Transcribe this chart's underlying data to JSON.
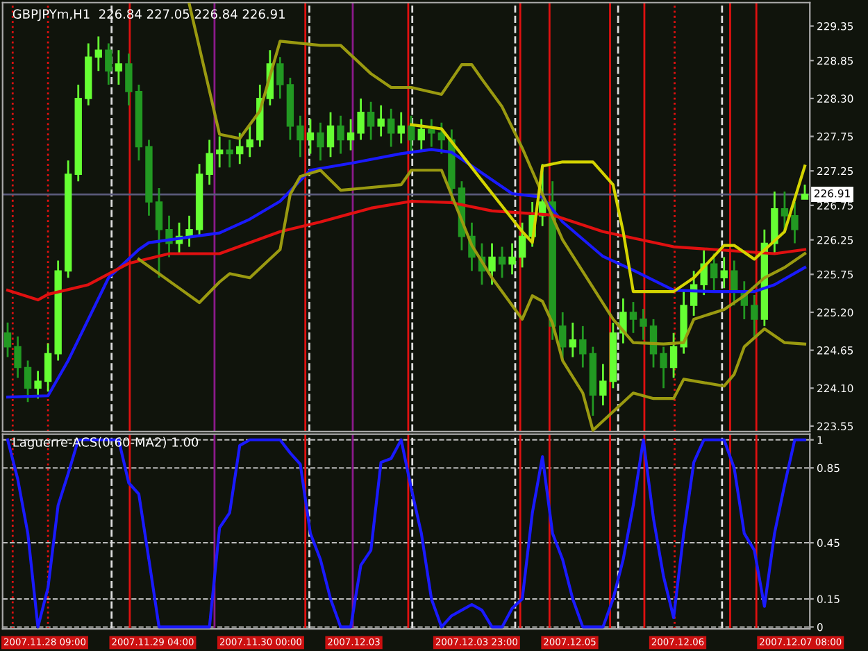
{
  "chart_data": [
    {
      "type": "candlestick",
      "title": "GBPJPYm,H1  226.84 227.05 226.84 226.91",
      "categories": [
        null,
        null,
        null,
        null,
        null,
        null,
        null,
        null,
        null,
        null,
        null,
        null,
        null,
        null,
        null,
        null,
        null,
        null,
        null,
        null,
        null,
        null,
        null,
        null,
        null,
        null,
        null,
        null,
        null,
        null,
        null,
        null,
        null,
        null,
        null,
        null,
        null,
        null,
        null,
        null,
        null,
        null,
        null,
        null,
        null,
        null,
        null,
        null,
        null,
        null,
        null,
        null,
        null,
        null,
        null,
        null,
        null,
        null,
        null,
        null,
        null,
        null,
        null,
        null,
        null,
        null,
        null,
        null,
        null,
        null,
        null,
        null,
        null,
        null,
        null,
        null,
        null,
        null,
        null,
        null
      ],
      "ohlc": [
        [
          224.9,
          225.05,
          224.55,
          224.7
        ],
        [
          224.7,
          224.85,
          224.25,
          224.4
        ],
        [
          224.4,
          224.5,
          223.9,
          224.1
        ],
        [
          224.1,
          224.35,
          223.95,
          224.2
        ],
        [
          224.2,
          224.75,
          224.05,
          224.6
        ],
        [
          224.6,
          225.95,
          224.5,
          225.8
        ],
        [
          225.8,
          227.4,
          225.7,
          227.2
        ],
        [
          227.2,
          228.5,
          227.1,
          228.3
        ],
        [
          228.3,
          229.1,
          228.2,
          228.9
        ],
        [
          228.9,
          229.2,
          228.7,
          229.0
        ],
        [
          229.0,
          229.1,
          228.5,
          228.7
        ],
        [
          228.7,
          229.0,
          228.5,
          228.8
        ],
        [
          228.8,
          228.95,
          228.2,
          228.4
        ],
        [
          228.4,
          228.5,
          227.4,
          227.6
        ],
        [
          227.6,
          227.7,
          226.6,
          226.8
        ],
        [
          226.8,
          227.0,
          225.7,
          226.4
        ],
        [
          226.4,
          226.6,
          226.0,
          226.2
        ],
        [
          226.2,
          226.5,
          226.05,
          226.3
        ],
        [
          226.3,
          226.6,
          226.15,
          226.4
        ],
        [
          226.4,
          227.35,
          226.3,
          227.2
        ],
        [
          227.2,
          227.7,
          227.05,
          227.5
        ],
        [
          227.5,
          227.75,
          227.3,
          227.55
        ],
        [
          227.55,
          227.7,
          227.3,
          227.5
        ],
        [
          227.5,
          227.8,
          227.35,
          227.6
        ],
        [
          227.6,
          227.9,
          227.45,
          227.7
        ],
        [
          227.7,
          228.5,
          227.6,
          228.3
        ],
        [
          228.3,
          229.0,
          228.2,
          228.8
        ],
        [
          228.8,
          228.9,
          228.3,
          228.5
        ],
        [
          228.5,
          228.6,
          227.7,
          227.9
        ],
        [
          227.9,
          228.05,
          227.45,
          227.7
        ],
        [
          227.7,
          228.0,
          227.5,
          227.8
        ],
        [
          227.8,
          227.95,
          227.4,
          227.6
        ],
        [
          227.6,
          228.1,
          227.45,
          227.9
        ],
        [
          227.9,
          228.05,
          227.5,
          227.7
        ],
        [
          227.7,
          228.0,
          227.55,
          227.8
        ],
        [
          227.8,
          228.3,
          227.7,
          228.1
        ],
        [
          228.1,
          228.25,
          227.7,
          227.9
        ],
        [
          227.9,
          228.2,
          227.75,
          228.0
        ],
        [
          228.0,
          228.15,
          227.6,
          227.8
        ],
        [
          227.8,
          228.1,
          227.65,
          227.9
        ],
        [
          227.9,
          228.05,
          227.5,
          227.7
        ],
        [
          227.7,
          228.0,
          227.55,
          227.85
        ],
        [
          227.85,
          228.0,
          227.6,
          227.8
        ],
        [
          227.8,
          227.95,
          227.5,
          227.7
        ],
        [
          227.7,
          227.85,
          226.8,
          227.0
        ],
        [
          227.0,
          227.1,
          226.1,
          226.3
        ],
        [
          226.3,
          226.5,
          225.8,
          226.0
        ],
        [
          226.0,
          226.2,
          225.6,
          225.8
        ],
        [
          225.8,
          226.2,
          225.6,
          226.0
        ],
        [
          226.0,
          226.15,
          225.7,
          225.9
        ],
        [
          225.9,
          226.2,
          225.75,
          226.0
        ],
        [
          226.0,
          226.5,
          225.85,
          226.3
        ],
        [
          226.3,
          226.8,
          226.15,
          226.6
        ],
        [
          226.6,
          227.35,
          226.45,
          226.8
        ],
        [
          226.8,
          227.1,
          224.8,
          225.0
        ],
        [
          225.0,
          225.2,
          224.5,
          224.7
        ],
        [
          224.7,
          225.05,
          224.55,
          224.8
        ],
        [
          224.8,
          225.0,
          224.4,
          224.6
        ],
        [
          224.6,
          224.7,
          223.7,
          224.0
        ],
        [
          224.0,
          224.45,
          223.85,
          224.2
        ],
        [
          224.2,
          225.05,
          224.1,
          224.9
        ],
        [
          224.9,
          225.4,
          224.75,
          225.2
        ],
        [
          225.2,
          225.35,
          224.9,
          225.1
        ],
        [
          225.1,
          225.25,
          224.8,
          225.0
        ],
        [
          225.0,
          225.1,
          224.4,
          224.6
        ],
        [
          224.6,
          224.7,
          224.1,
          224.4
        ],
        [
          224.4,
          224.9,
          224.25,
          224.7
        ],
        [
          224.7,
          225.5,
          224.6,
          225.3
        ],
        [
          225.3,
          225.8,
          225.15,
          225.6
        ],
        [
          225.6,
          226.1,
          225.45,
          225.9
        ],
        [
          225.9,
          226.05,
          225.5,
          225.7
        ],
        [
          225.7,
          226.0,
          225.55,
          225.8
        ],
        [
          225.8,
          225.95,
          225.3,
          225.5
        ],
        [
          225.5,
          225.65,
          225.1,
          225.3
        ],
        [
          225.3,
          225.45,
          224.85,
          225.1
        ],
        [
          225.1,
          226.4,
          225.0,
          226.2
        ],
        [
          226.2,
          226.95,
          226.05,
          226.7
        ],
        [
          226.7,
          226.95,
          226.35,
          226.6
        ],
        [
          226.6,
          226.8,
          226.2,
          226.4
        ],
        [
          226.84,
          227.05,
          226.84,
          226.91
        ]
      ],
      "colors": [
        "#229922",
        "#229922",
        "#229922",
        "#66ff33",
        "#66ff33",
        "#66ff33",
        "#66ff33",
        "#66ff33",
        "#66ff33",
        "#66ff33",
        "#229922",
        "#66ff33",
        "#229922",
        "#229922",
        "#229922",
        "#229922",
        "#229922",
        "#66ff33",
        "#66ff33",
        "#66ff33",
        "#66ff33",
        "#66ff33",
        "#229922",
        "#66ff33",
        "#66ff33",
        "#66ff33",
        "#66ff33",
        "#229922",
        "#229922",
        "#229922",
        "#66ff33",
        "#229922",
        "#66ff33",
        "#229922",
        "#66ff33",
        "#66ff33",
        "#229922",
        "#66ff33",
        "#229922",
        "#66ff33",
        "#229922",
        "#66ff33",
        "#229922",
        "#229922",
        "#229922",
        "#229922",
        "#229922",
        "#229922",
        "#66ff33",
        "#229922",
        "#66ff33",
        "#66ff33",
        "#66ff33",
        "#66ff33",
        "#229922",
        "#229922",
        "#66ff33",
        "#229922",
        "#229922",
        "#66ff33",
        "#66ff33",
        "#66ff33",
        "#229922",
        "#229922",
        "#229922",
        "#229922",
        "#66ff33",
        "#66ff33",
        "#66ff33",
        "#66ff33",
        "#229922",
        "#66ff33",
        "#229922",
        "#229922",
        "#229922",
        "#66ff33",
        "#66ff33",
        "#229922",
        "#229922",
        "#66ff33"
      ],
      "series": [
        {
          "type": "line",
          "color": "#1a1aff",
          "values": [
            223.97,
            null,
            null,
            null,
            223.99,
            null,
            224.5,
            null,
            null,
            null,
            225.7,
            null,
            null,
            226.11,
            226.21,
            null,
            null,
            null,
            null,
            null,
            null,
            226.35,
            null,
            null,
            226.55,
            null,
            null,
            226.81,
            null,
            null,
            227.26,
            null,
            null,
            null,
            227.36,
            null,
            null,
            null,
            null,
            227.5,
            null,
            null,
            227.56,
            null,
            227.52,
            null,
            227.32,
            null,
            null,
            null,
            226.92,
            null,
            null,
            226.87,
            null,
            226.51,
            null,
            null,
            null,
            226.01,
            null,
            null,
            225.81,
            null,
            null,
            null,
            225.52,
            null,
            null,
            null,
            225.5,
            null,
            null,
            null,
            225.5,
            null,
            225.6,
            null,
            null,
            225.85
          ]
        },
        {
          "type": "line",
          "color": "#e01010",
          "values": [
            225.52,
            null,
            null,
            225.38,
            225.46,
            null,
            null,
            null,
            225.6,
            null,
            null,
            null,
            225.91,
            null,
            null,
            null,
            226.05,
            null,
            null,
            null,
            null,
            226.05,
            null,
            null,
            null,
            null,
            null,
            226.37,
            null,
            null,
            null,
            226.51,
            null,
            null,
            null,
            null,
            226.71,
            null,
            null,
            null,
            226.81,
            null,
            null,
            null,
            226.79,
            null,
            null,
            null,
            226.67,
            null,
            null,
            null,
            null,
            null,
            226.61,
            null,
            null,
            null,
            null,
            226.37,
            null,
            null,
            null,
            null,
            null,
            null,
            226.15,
            null,
            null,
            null,
            226.11,
            null,
            null,
            null,
            226.07,
            null,
            226.05,
            null,
            null,
            226.11
          ]
        },
        {
          "type": "line",
          "color": "#9a9a10",
          "values": [
            null,
            null,
            null,
            null,
            null,
            null,
            null,
            null,
            null,
            null,
            null,
            null,
            null,
            null,
            null,
            null,
            null,
            null,
            229.67,
            null,
            null,
            227.78,
            null,
            227.72,
            null,
            228.12,
            null,
            229.13,
            null,
            null,
            null,
            229.07,
            null,
            229.07,
            null,
            null,
            228.66,
            null,
            228.46,
            null,
            228.46,
            null,
            null,
            228.36,
            null,
            228.79,
            228.79,
            228.58,
            null,
            228.18,
            null,
            227.58,
            null,
            226.91,
            null,
            226.25,
            null,
            null,
            225.56,
            null,
            225.1,
            null,
            224.76,
            null,
            null,
            224.74,
            null,
            224.76,
            225.1,
            null,
            null,
            225.24,
            null,
            225.44,
            null,
            225.7,
            null,
            225.85,
            null,
            226.05
          ]
        },
        {
          "type": "line",
          "color": "#9a9a10",
          "values": [
            null,
            null,
            null,
            null,
            null,
            null,
            null,
            null,
            null,
            null,
            null,
            null,
            null,
            225.97,
            null,
            null,
            null,
            null,
            null,
            225.34,
            null,
            225.64,
            225.76,
            null,
            225.7,
            null,
            null,
            226.11,
            226.91,
            227.17,
            null,
            227.26,
            null,
            226.97,
            null,
            null,
            null,
            null,
            null,
            227.05,
            227.26,
            null,
            null,
            227.26,
            null,
            null,
            226.17,
            null,
            225.7,
            null,
            null,
            225.1,
            225.44,
            225.36,
            225.04,
            224.5,
            null,
            224.03,
            223.49,
            null,
            null,
            null,
            224.03,
            null,
            223.95,
            null,
            223.95,
            224.23,
            null,
            null,
            null,
            224.13,
            224.3,
            224.7,
            null,
            224.96,
            null,
            224.76,
            null,
            224.74
          ]
        },
        {
          "type": "line",
          "color": "#d4d400",
          "values": [
            null,
            null,
            null,
            null,
            null,
            null,
            null,
            null,
            null,
            null,
            null,
            null,
            null,
            null,
            null,
            null,
            null,
            null,
            null,
            null,
            null,
            null,
            null,
            null,
            null,
            null,
            null,
            null,
            null,
            null,
            null,
            null,
            null,
            null,
            null,
            null,
            null,
            null,
            null,
            null,
            227.92,
            null,
            null,
            227.86,
            null,
            null,
            null,
            227.11,
            null,
            null,
            null,
            226.37,
            226.21,
            227.32,
            null,
            227.38,
            null,
            null,
            227.38,
            null,
            227.05,
            226.37,
            225.5,
            null,
            225.5,
            null,
            225.5,
            null,
            225.7,
            null,
            null,
            226.17,
            226.17,
            null,
            225.97,
            null,
            null,
            226.37,
            null,
            227.32
          ]
        }
      ],
      "ylim": [
        223.47,
        229.69
      ],
      "yticks": [
        223.55,
        {
          "value": 224.1,
          "label": "224.10"
        },
        224.65,
        {
          "value": 225.2,
          "label": "225.20"
        },
        225.75,
        226.25,
        226.75,
        227.25,
        227.75,
        {
          "value": 228.3,
          "label": "228.30"
        },
        228.85,
        229.35
      ],
      "tick_labels": "y",
      "grid": "x",
      "ref_lines": [
        {
          "axis": "y",
          "value": 226.91,
          "label": "226.91",
          "color": "#5a5a7a",
          "line_style": "solid"
        }
      ]
    },
    {
      "type": "line",
      "title": "Laguerre-ACS(0.60-MA2) 1.00",
      "categories": [
        null,
        null,
        null,
        null,
        null,
        null,
        null,
        null,
        null,
        null,
        null,
        null,
        null,
        null,
        null,
        null,
        null,
        null,
        null,
        null,
        null,
        null,
        null,
        null,
        null,
        null,
        null,
        null,
        null,
        null,
        null,
        null,
        null,
        null,
        null,
        null,
        null,
        null,
        null,
        null,
        null,
        null,
        null,
        null,
        null,
        null,
        null,
        null,
        null,
        null,
        null,
        null,
        null,
        null,
        null,
        null,
        null,
        null,
        null,
        null,
        null,
        null,
        null,
        null,
        null,
        null,
        null,
        null,
        null,
        null,
        null,
        null,
        null,
        null,
        null,
        null,
        null,
        null,
        null,
        null
      ],
      "series": [
        {
          "color": "#1a1aff",
          "values": [
            1.0,
            0.79,
            0.5,
            0,
            0.21,
            0.65,
            0.82,
            1.0,
            1.0,
            1.0,
            1.0,
            1.0,
            0.77,
            0.71,
            0.36,
            0,
            0,
            0,
            0,
            0,
            0,
            0.53,
            0.61,
            0.97,
            1.0,
            1.0,
            1.0,
            1.0,
            0.93,
            0.87,
            0.5,
            0.36,
            0.15,
            0,
            0,
            0.33,
            0.41,
            0.88,
            0.9,
            1.0,
            0.74,
            0.5,
            0.15,
            0,
            0.06,
            0.09,
            0.12,
            0.09,
            0,
            0,
            0.1,
            0.15,
            0.61,
            0.91,
            0.5,
            0.36,
            0.15,
            0,
            0,
            0,
            0.15,
            0.36,
            0.65,
            1.0,
            0.58,
            0.27,
            0.05,
            0.5,
            0.88,
            1.0,
            1.0,
            1.0,
            0.85,
            0.5,
            0.41,
            0.11,
            0.5,
            0.76,
            1.0,
            1.0
          ]
        }
      ],
      "ylim": [
        -0.01,
        1.03
      ],
      "yticks": [
        0,
        0.15,
        0.45,
        0.85,
        1
      ],
      "grid": true,
      "tick_labels": "y",
      "line_style": "solid",
      "annotations": [
        "2007.11.28 09:00",
        "2007.11.29 04:00",
        "2007.11.30 00:00",
        "2007.12.03",
        "2007.12.03 23:00",
        "2007.12.05",
        "2007.12.06",
        "2007.12.07 08:00"
      ]
    }
  ]
}
